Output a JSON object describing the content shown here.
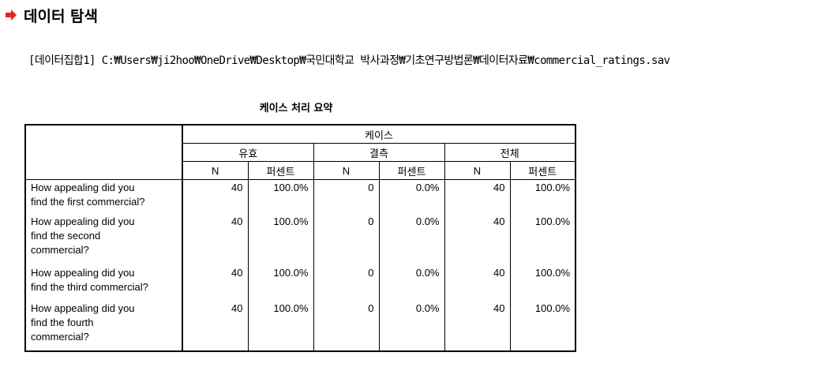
{
  "header": {
    "title": "데이터 탐색",
    "dataset_line": "[데이터집합1] C:₩Users₩ji2hoo₩OneDrive₩Desktop₩국민대학교 박사과정₩기초연구방법론₩데이터자료₩commercial_ratings.sav"
  },
  "table": {
    "caption": "케이스 처리 요약",
    "group_header": "케이스",
    "subgroups": [
      "유효",
      "결측",
      "전체"
    ],
    "columns": [
      "N",
      "퍼센트",
      "N",
      "퍼센트",
      "N",
      "퍼센트"
    ],
    "rows": [
      {
        "label": "How appealing did you find the first commercial?",
        "lines": [
          "How appealing did you",
          "find the first commercial?"
        ],
        "cells": [
          "40",
          "100.0%",
          "0",
          "0.0%",
          "40",
          "100.0%"
        ]
      },
      {
        "label": "How appealing did you find the second commercial?",
        "lines": [
          "How appealing did you",
          "find the second",
          "commercial?"
        ],
        "cells": [
          "40",
          "100.0%",
          "0",
          "0.0%",
          "40",
          "100.0%"
        ]
      },
      {
        "label": "How appealing did you find the third commercial?",
        "lines": [
          "How appealing did you",
          "find the third commercial?"
        ],
        "cells": [
          "40",
          "100.0%",
          "0",
          "0.0%",
          "40",
          "100.0%"
        ]
      },
      {
        "label": "How appealing did you find the fourth commercial?",
        "lines": [
          "How appealing did you",
          "find the fourth",
          "commercial?"
        ],
        "cells": [
          "40",
          "100.0%",
          "0",
          "0.0%",
          "40",
          "100.0%"
        ]
      }
    ]
  },
  "colors": {
    "arrow": "#e8231a",
    "text": "#000000",
    "background": "#ffffff"
  }
}
